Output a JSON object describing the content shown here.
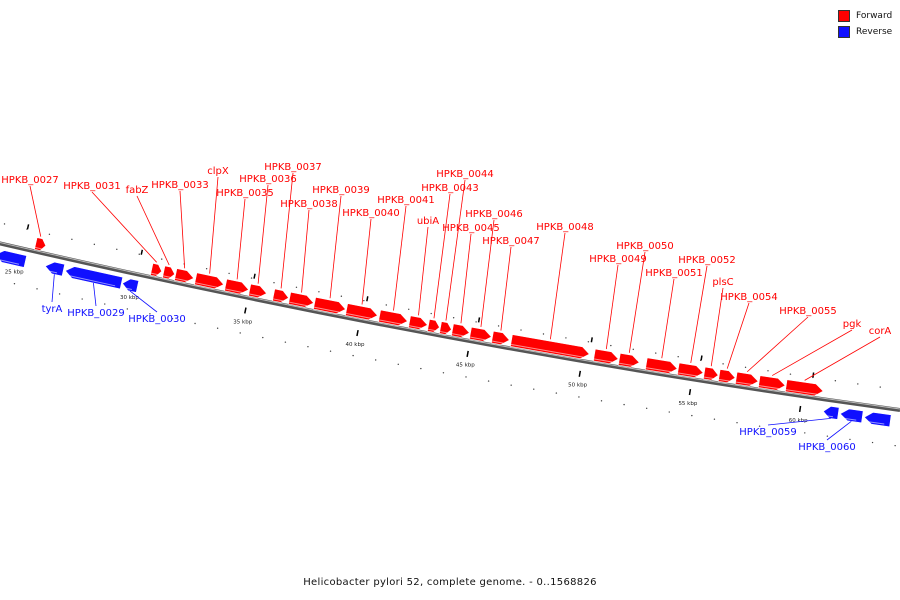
{
  "legend": {
    "forward_label": "Forward",
    "reverse_label": "Reverse",
    "forward_color": "#ff0000",
    "reverse_color": "#1010ff"
  },
  "title": "Helicobacter pylori 52, complete genome. - 0..1568826",
  "ticks": [
    "25 kbp",
    "30 kbp",
    "35 kbp",
    "40 kbp",
    "45 kbp",
    "50 kbp",
    "55 kbp",
    "60 kbp"
  ],
  "forward_genes": [
    {
      "name": "HPKB_0027",
      "label": "HPKB_0027"
    },
    {
      "name": "HPKB_0031",
      "label": "HPKB_0031"
    },
    {
      "name": "fabZ",
      "label": "fabZ"
    },
    {
      "name": "HPKB_0033",
      "label": "HPKB_0033"
    },
    {
      "name": "clpX",
      "label": "clpX"
    },
    {
      "name": "HPKB_0035",
      "label": "HPKB_0035"
    },
    {
      "name": "HPKB_0036",
      "label": "HPKB_0036"
    },
    {
      "name": "HPKB_0037",
      "label": "HPKB_0037"
    },
    {
      "name": "HPKB_0038",
      "label": "HPKB_0038"
    },
    {
      "name": "HPKB_0039",
      "label": "HPKB_0039"
    },
    {
      "name": "HPKB_0040",
      "label": "HPKB_0040"
    },
    {
      "name": "HPKB_0041",
      "label": "HPKB_0041"
    },
    {
      "name": "ubiA",
      "label": "ubiA"
    },
    {
      "name": "HPKB_0043",
      "label": "HPKB_0043"
    },
    {
      "name": "HPKB_0044",
      "label": "HPKB_0044"
    },
    {
      "name": "HPKB_0045",
      "label": "HPKB_0045"
    },
    {
      "name": "HPKB_0046",
      "label": "HPKB_0046"
    },
    {
      "name": "HPKB_0047",
      "label": "HPKB_0047"
    },
    {
      "name": "HPKB_0048",
      "label": "HPKB_0048"
    },
    {
      "name": "HPKB_0049",
      "label": "HPKB_0049"
    },
    {
      "name": "HPKB_0050",
      "label": "HPKB_0050"
    },
    {
      "name": "HPKB_0051",
      "label": "HPKB_0051"
    },
    {
      "name": "HPKB_0052",
      "label": "HPKB_0052"
    },
    {
      "name": "plsC",
      "label": "plsC"
    },
    {
      "name": "HPKB_0054",
      "label": "HPKB_0054"
    },
    {
      "name": "HPKB_0055",
      "label": "HPKB_0055"
    },
    {
      "name": "pgk",
      "label": "pgk"
    },
    {
      "name": "corA",
      "label": "corA"
    }
  ],
  "reverse_genes": [
    {
      "name": "tyrA",
      "label": "tyrA"
    },
    {
      "name": "HPKB_0029",
      "label": "HPKB_0029"
    },
    {
      "name": "HPKB_0030",
      "label": "HPKB_0030"
    },
    {
      "name": "HPKB_0059",
      "label": "HPKB_0059"
    },
    {
      "name": "HPKB_0060",
      "label": "HPKB_0060"
    }
  ]
}
